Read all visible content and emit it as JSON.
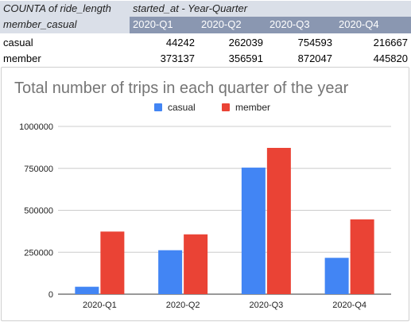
{
  "pivot": {
    "corner_label": "COUNTA of ride_length",
    "column_field_label": "started_at - Year-Quarter",
    "row_field_label": "member_casual",
    "columns": [
      "2020-Q1",
      "2020-Q2",
      "2020-Q3",
      "2020-Q4"
    ],
    "rows": [
      {
        "label": "casual",
        "values": [
          "44242",
          "262039",
          "754593",
          "216667"
        ]
      },
      {
        "label": "member",
        "values": [
          "373137",
          "356591",
          "872047",
          "445820"
        ]
      }
    ],
    "colors": {
      "header_light": "#dadfe8",
      "header_dark": "#8a97b1"
    }
  },
  "chart_data": {
    "type": "bar",
    "title": "Total number of trips in each quarter of the year",
    "categories": [
      "2020-Q1",
      "2020-Q2",
      "2020-Q3",
      "2020-Q4"
    ],
    "series": [
      {
        "name": "casual",
        "color": "#4285f4",
        "values": [
          44242,
          262039,
          754593,
          216667
        ]
      },
      {
        "name": "member",
        "color": "#ea4335",
        "values": [
          373137,
          356591,
          872047,
          445820
        ]
      }
    ],
    "ylim": [
      0,
      1000000
    ],
    "yticks": [
      0,
      250000,
      500000,
      750000,
      1000000
    ],
    "ytick_labels": [
      "0",
      "250000",
      "500000",
      "750000",
      "1000000"
    ],
    "xlabel": "",
    "ylabel": "",
    "legend_position": "top",
    "grid": true
  }
}
